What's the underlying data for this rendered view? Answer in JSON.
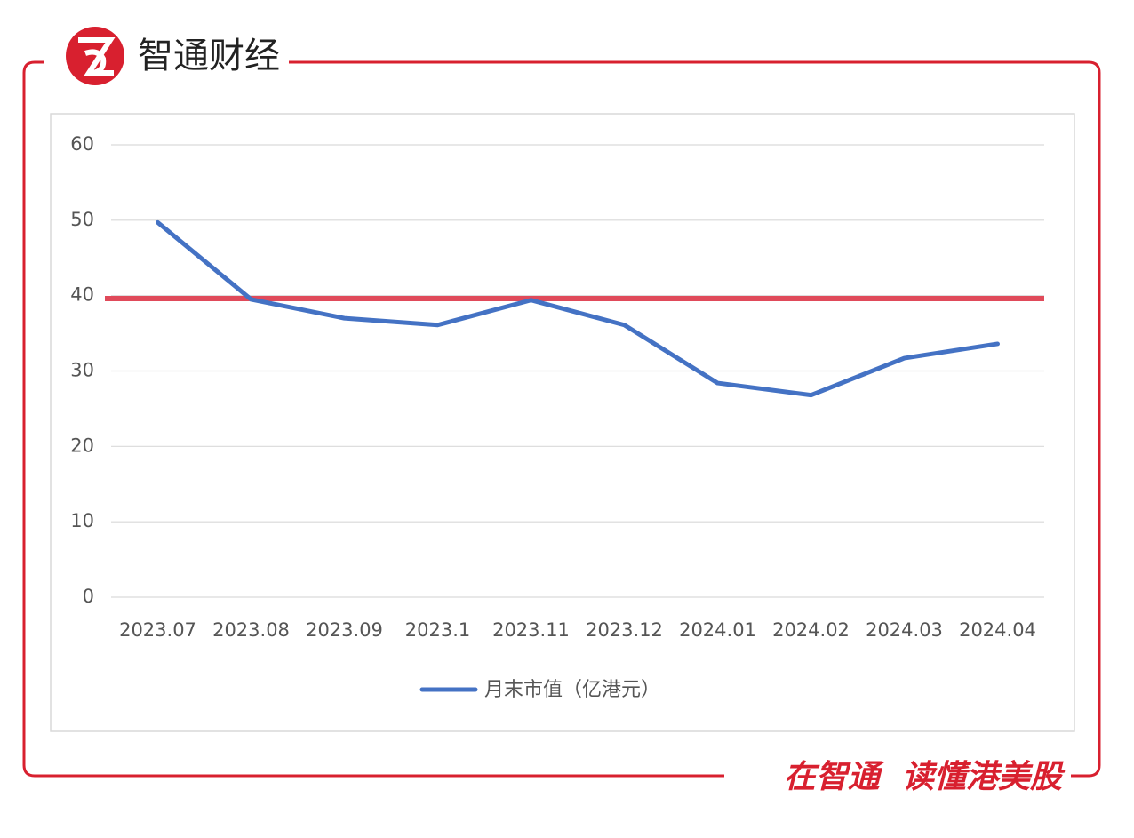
{
  "brand": {
    "name": "智通财经"
  },
  "footer": {
    "slogan": "在智通  读懂港美股"
  },
  "chart_data": {
    "type": "line",
    "categories": [
      "2023.07",
      "2023.08",
      "2023.09",
      "2023.1",
      "2023.11",
      "2023.12",
      "2024.01",
      "2024.02",
      "2024.03",
      "2024.04"
    ],
    "series": [
      {
        "name": "月末市值（亿港元）",
        "color": "#4472c4",
        "values": [
          49.7,
          39.5,
          37.0,
          36.1,
          39.4,
          36.1,
          28.4,
          26.8,
          31.7,
          33.6
        ]
      }
    ],
    "reference_line": {
      "value": 39.6,
      "color": "#e04a5a"
    },
    "ylim": [
      0,
      60
    ],
    "yticks": [
      0,
      10,
      20,
      30,
      40,
      50,
      60
    ],
    "grid": true,
    "legend": "bottom"
  }
}
